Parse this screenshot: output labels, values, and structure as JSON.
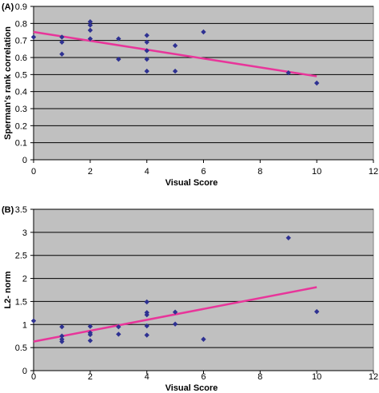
{
  "chart_data": [
    {
      "type": "scatter",
      "panel_label": "(A)",
      "title": "",
      "xlabel": "Visual Score",
      "ylabel": "Sperman's rank correlation",
      "xlim": [
        0,
        12
      ],
      "ylim": [
        0,
        0.9
      ],
      "x_ticks": [
        0,
        2,
        4,
        6,
        8,
        10,
        12
      ],
      "y_ticks": [
        0,
        0.1,
        0.2,
        0.3,
        0.4,
        0.5,
        0.6,
        0.7,
        0.8,
        0.9
      ],
      "grid": "horizontal",
      "legend": "none",
      "point_color": "#2e3192",
      "trend_color": "#e8359a",
      "plot_bg": "#c0c0c0",
      "points": [
        [
          0,
          0.72
        ],
        [
          1,
          0.72
        ],
        [
          1,
          0.69
        ],
        [
          1,
          0.62
        ],
        [
          2,
          0.81
        ],
        [
          2,
          0.79
        ],
        [
          2,
          0.76
        ],
        [
          2,
          0.71
        ],
        [
          3,
          0.71
        ],
        [
          3,
          0.59
        ],
        [
          4,
          0.73
        ],
        [
          4,
          0.69
        ],
        [
          4,
          0.64
        ],
        [
          4,
          0.59
        ],
        [
          4,
          0.52
        ],
        [
          5,
          0.67
        ],
        [
          5,
          0.52
        ],
        [
          6,
          0.75
        ],
        [
          9,
          0.51
        ],
        [
          10,
          0.45
        ]
      ],
      "trendline": [
        [
          0,
          0.75
        ],
        [
          10,
          0.49
        ]
      ]
    },
    {
      "type": "scatter",
      "panel_label": "(B)",
      "title": "",
      "xlabel": "Visual Score",
      "ylabel": "L2- norm",
      "xlim": [
        0,
        12
      ],
      "ylim": [
        0,
        3.5
      ],
      "x_ticks": [
        0,
        2,
        4,
        6,
        8,
        10,
        12
      ],
      "y_ticks": [
        0,
        0.5,
        1,
        1.5,
        2,
        2.5,
        3,
        3.5
      ],
      "grid": "horizontal",
      "legend": "none",
      "point_color": "#2e3192",
      "trend_color": "#e8359a",
      "plot_bg": "#c0c0c0",
      "points": [
        [
          0,
          1.08
        ],
        [
          1,
          0.95
        ],
        [
          1,
          0.75
        ],
        [
          1,
          0.68
        ],
        [
          1,
          0.63
        ],
        [
          2,
          0.96
        ],
        [
          2,
          0.82
        ],
        [
          2,
          0.78
        ],
        [
          2,
          0.65
        ],
        [
          3,
          0.95
        ],
        [
          3,
          0.79
        ],
        [
          4,
          1.49
        ],
        [
          4,
          1.26
        ],
        [
          4,
          1.21
        ],
        [
          4,
          0.97
        ],
        [
          4,
          0.77
        ],
        [
          5,
          1.27
        ],
        [
          5,
          1.01
        ],
        [
          6,
          0.68
        ],
        [
          9,
          2.88
        ],
        [
          10,
          1.28
        ]
      ],
      "trendline": [
        [
          0,
          0.63
        ],
        [
          10,
          1.81
        ]
      ]
    }
  ]
}
